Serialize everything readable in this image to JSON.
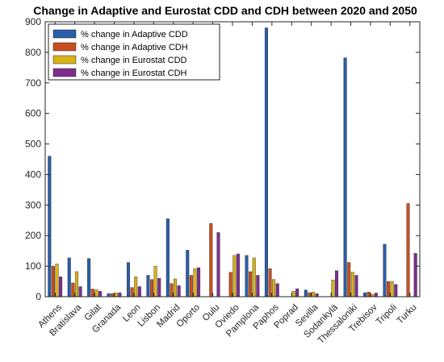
{
  "chart_data": {
    "type": "bar",
    "title": "Change in Adaptive and Eurostat CDD and CDH between 2020 and 2050",
    "xlabel": "",
    "ylabel": "",
    "ylim": [
      0,
      900
    ],
    "yticks": [
      0,
      100,
      200,
      300,
      400,
      500,
      600,
      700,
      800,
      900
    ],
    "grid": false,
    "legend_position": "top-left",
    "categories": [
      "Athens",
      "Bratislava",
      "Gilat",
      "Granada",
      "Leon",
      "Lisbon",
      "Madrid",
      "Oporto",
      "Oulu",
      "Oviedo",
      "Pamplona",
      "Paphos",
      "Poprad",
      "Sevilla",
      "Sodankylä",
      "Thessaloniki",
      "Trebisov",
      "Tripoli",
      "Turku"
    ],
    "series": [
      {
        "name": "% change in Adaptive CDD",
        "color": "#2b5ea8",
        "values": [
          460,
          127,
          125,
          10,
          112,
          70,
          255,
          152,
          0,
          0,
          135,
          880,
          0,
          22,
          0,
          782,
          13,
          172,
          0
        ]
      },
      {
        "name": "% change in Adaptive CDH",
        "color": "#c8501e",
        "values": [
          100,
          45,
          25,
          10,
          30,
          56,
          43,
          70,
          240,
          80,
          82,
          92,
          0,
          13,
          0,
          112,
          15,
          50,
          305
        ]
      },
      {
        "name": "% change in Eurostat CDD",
        "color": "#d8b21a",
        "values": [
          107,
          82,
          23,
          12,
          65,
          100,
          58,
          92,
          0,
          135,
          127,
          56,
          18,
          15,
          55,
          80,
          8,
          50,
          0
        ]
      },
      {
        "name": "% change in Eurostat CDH",
        "color": "#7e2f8e",
        "values": [
          65,
          33,
          18,
          13,
          33,
          60,
          36,
          95,
          210,
          140,
          70,
          43,
          26,
          10,
          85,
          70,
          12,
          40,
          142
        ]
      }
    ]
  }
}
